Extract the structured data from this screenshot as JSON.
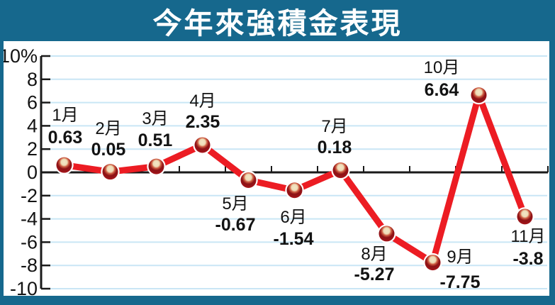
{
  "title": "今年來強積金表現",
  "chart_data": {
    "type": "line",
    "title": "今年來強積金表現",
    "categories": [
      "1月",
      "2月",
      "3月",
      "4月",
      "5月",
      "6月",
      "7月",
      "8月",
      "9月",
      "10月",
      "11月"
    ],
    "values": [
      0.63,
      0.05,
      0.51,
      2.35,
      -0.67,
      -1.54,
      0.18,
      -5.27,
      -7.75,
      6.64,
      -3.8
    ],
    "value_labels": [
      "0.63",
      "0.05",
      "0.51",
      "2.35",
      "-0.67",
      "-1.54",
      "0.18",
      "-5.27",
      "-7.75",
      "6.64",
      "-3.8"
    ],
    "unit": "%",
    "ylim": [
      -10,
      10
    ],
    "y_tick_step": 2,
    "y_tick_labels": [
      "10%",
      "8",
      "6",
      "4",
      "2",
      "0",
      "-2",
      "-4",
      "-6",
      "-8",
      "-10"
    ],
    "grid": "horizontal gridlines on, light blue",
    "legend": "none",
    "xlabel": "",
    "ylabel": "",
    "colors": {
      "frame_background": "#16688d",
      "title_text": "#ffffff",
      "plot_background": "#ffffff",
      "gridline": "#c9e6f5",
      "axis": "#1a1a1a",
      "line": "#ec1c23",
      "marker_dark": "#8c1115",
      "marker_mid": "#c22026",
      "marker_highlight": "#f3e5c6",
      "marker_halo": "#ffffff",
      "label_text": "#131313"
    }
  }
}
